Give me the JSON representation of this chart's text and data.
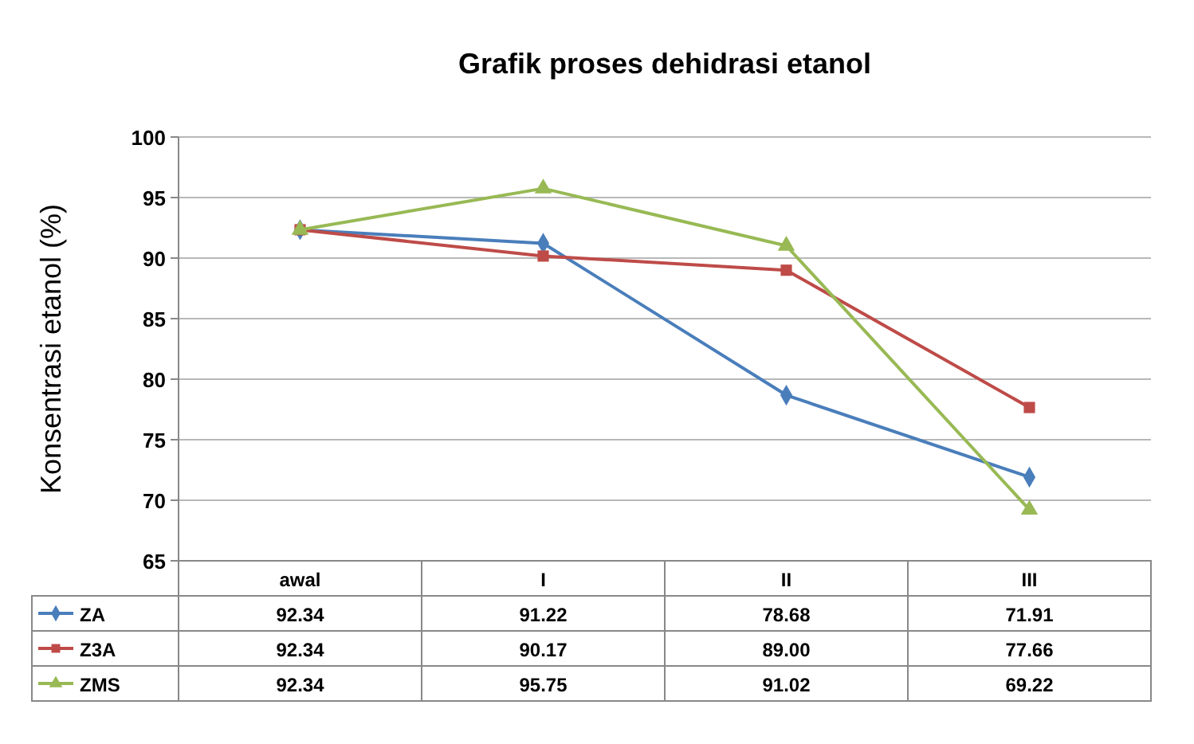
{
  "chart_data": {
    "type": "line",
    "title": "Grafik proses dehidrasi etanol",
    "ylabel": "Konsentrasi etanol (%)",
    "categories": [
      "awal",
      "I",
      "II",
      "III"
    ],
    "series": [
      {
        "name": "ZA",
        "color": "#4a7ebb",
        "marker": "diamond",
        "values": [
          92.34,
          91.22,
          78.68,
          71.91
        ],
        "value_labels": [
          "92.34",
          "91.22",
          "78.68",
          "71.91"
        ]
      },
      {
        "name": "Z3A",
        "color": "#be4b48",
        "marker": "square",
        "values": [
          92.34,
          90.17,
          89.0,
          77.66
        ],
        "value_labels": [
          "92.34",
          "90.17",
          "89.00",
          "77.66"
        ]
      },
      {
        "name": "ZMS",
        "color": "#98b954",
        "marker": "triangle",
        "values": [
          92.34,
          95.75,
          91.02,
          69.22
        ],
        "value_labels": [
          "92.34",
          "95.75",
          "91.02",
          "69.22"
        ]
      }
    ],
    "ylim": [
      65,
      100
    ],
    "yticks": [
      65,
      70,
      75,
      80,
      85,
      90,
      95,
      100
    ],
    "grid": "y",
    "legend": "bottom",
    "line_style": "solid"
  }
}
